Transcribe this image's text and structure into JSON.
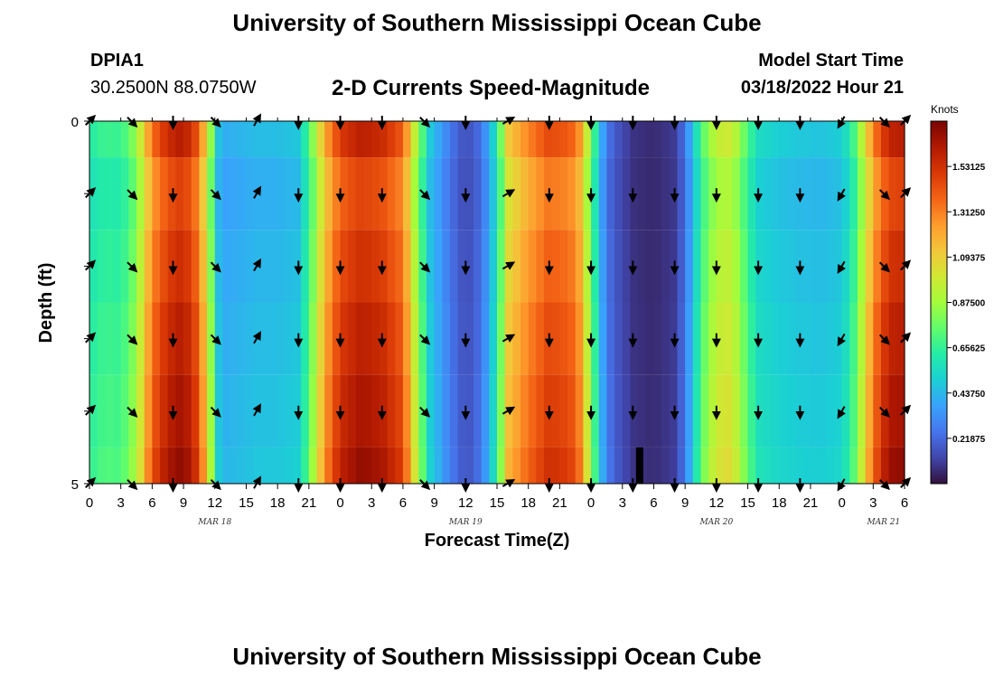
{
  "header": {
    "title": "University of Southern Mississippi Ocean Cube",
    "station_id": "DPIA1",
    "coords": "30.2500N  88.0750W",
    "plot_title": "2-D Currents Speed-Magnitude",
    "model_start_label": "Model Start Time",
    "model_start_value": "03/18/2022 Hour 21"
  },
  "footer": {
    "title": "University of Southern Mississippi Ocean Cube"
  },
  "colors": {
    "palette": [
      "#30123b",
      "#4145ab",
      "#4675ed",
      "#39a2fc",
      "#1bcfd4",
      "#24eca6",
      "#61fc6c",
      "#a4fc3b",
      "#d1e834",
      "#f3c63a",
      "#fe9b2d",
      "#f36315",
      "#d93806",
      "#b11901",
      "#7a0403"
    ]
  },
  "chart_data": {
    "type": "heatmap",
    "title": "2-D Currents Speed-Magnitude",
    "xlabel": "Forecast Time(Z)",
    "ylabel": "Depth (ft)",
    "y_ticks": [
      "0",
      "5"
    ],
    "x_tick_labels": [
      "0",
      "3",
      "6",
      "9",
      "12",
      "15",
      "18",
      "21",
      "0",
      "3",
      "6",
      "9",
      "12",
      "15",
      "18",
      "21",
      "0",
      "3",
      "6",
      "9",
      "12",
      "15",
      "18",
      "21",
      "0",
      "3",
      "6"
    ],
    "date_labels": [
      "MAR 18",
      "MAR 19",
      "MAR 20",
      "MAR 21"
    ],
    "x_range_hours": [
      0,
      78
    ],
    "colorbar": {
      "unit": "Knots",
      "range": [
        0,
        1.75
      ],
      "ticks": [
        "0.21875",
        "0.43750",
        "0.65625",
        "0.87500",
        "1.09375",
        "1.31250",
        "1.53125"
      ]
    },
    "speed_by_hour": [
      {
        "t": 0,
        "v": 0.62
      },
      {
        "t": 1.5,
        "v": 0.68
      },
      {
        "t": 3,
        "v": 0.66
      },
      {
        "t": 4.5,
        "v": 0.85
      },
      {
        "t": 6,
        "v": 1.35
      },
      {
        "t": 7.5,
        "v": 1.55
      },
      {
        "t": 9,
        "v": 1.62
      },
      {
        "t": 10.5,
        "v": 1.4
      },
      {
        "t": 11.5,
        "v": 0.9
      },
      {
        "t": 12.5,
        "v": 0.4
      },
      {
        "t": 14,
        "v": 0.42
      },
      {
        "t": 16,
        "v": 0.45
      },
      {
        "t": 18,
        "v": 0.45
      },
      {
        "t": 20,
        "v": 0.48
      },
      {
        "t": 21,
        "v": 0.7
      },
      {
        "t": 22.5,
        "v": 1.2
      },
      {
        "t": 24,
        "v": 1.5
      },
      {
        "t": 26,
        "v": 1.6
      },
      {
        "t": 28,
        "v": 1.55
      },
      {
        "t": 30,
        "v": 1.4
      },
      {
        "t": 31,
        "v": 1.0
      },
      {
        "t": 32.5,
        "v": 0.5
      },
      {
        "t": 34,
        "v": 0.32
      },
      {
        "t": 35,
        "v": 0.22
      },
      {
        "t": 36,
        "v": 0.15
      },
      {
        "t": 37,
        "v": 0.2
      },
      {
        "t": 38,
        "v": 0.35
      },
      {
        "t": 39,
        "v": 0.6
      },
      {
        "t": 40,
        "v": 1.1
      },
      {
        "t": 42,
        "v": 1.3
      },
      {
        "t": 44,
        "v": 1.45
      },
      {
        "t": 46,
        "v": 1.4
      },
      {
        "t": 47,
        "v": 1.25
      },
      {
        "t": 48,
        "v": 0.8
      },
      {
        "t": 49,
        "v": 0.4
      },
      {
        "t": 50,
        "v": 0.2
      },
      {
        "t": 52,
        "v": 0.08
      },
      {
        "t": 54,
        "v": 0.06
      },
      {
        "t": 56,
        "v": 0.1
      },
      {
        "t": 57,
        "v": 0.25
      },
      {
        "t": 58,
        "v": 0.55
      },
      {
        "t": 59,
        "v": 0.8
      },
      {
        "t": 60,
        "v": 0.95
      },
      {
        "t": 61,
        "v": 1.0
      },
      {
        "t": 62,
        "v": 0.9
      },
      {
        "t": 63,
        "v": 0.7
      },
      {
        "t": 64,
        "v": 0.55
      },
      {
        "t": 66,
        "v": 0.5
      },
      {
        "t": 68,
        "v": 0.48
      },
      {
        "t": 70,
        "v": 0.47
      },
      {
        "t": 72,
        "v": 0.5
      },
      {
        "t": 73,
        "v": 0.65
      },
      {
        "t": 74,
        "v": 0.95
      },
      {
        "t": 75,
        "v": 1.3
      },
      {
        "t": 76,
        "v": 1.5
      },
      {
        "t": 77,
        "v": 1.6
      },
      {
        "t": 78,
        "v": 1.6
      }
    ],
    "arrow_hours": [
      0,
      4,
      8,
      12,
      16,
      20,
      24,
      28,
      32,
      36,
      40,
      44,
      48,
      52,
      56,
      60,
      64,
      68,
      72,
      76,
      78
    ],
    "arrow_depths_ft": [
      0,
      1,
      2,
      3,
      4,
      5
    ],
    "arrow_directions_deg": [
      45,
      135,
      180,
      135,
      30,
      180,
      180,
      180,
      135,
      180,
      60,
      180,
      180,
      180,
      180,
      180,
      180,
      180,
      210,
      135,
      45
    ],
    "missing_cells": [
      {
        "t0": 52.3,
        "t1": 53.0,
        "depth0": 4.5,
        "depth1": 5
      }
    ]
  }
}
